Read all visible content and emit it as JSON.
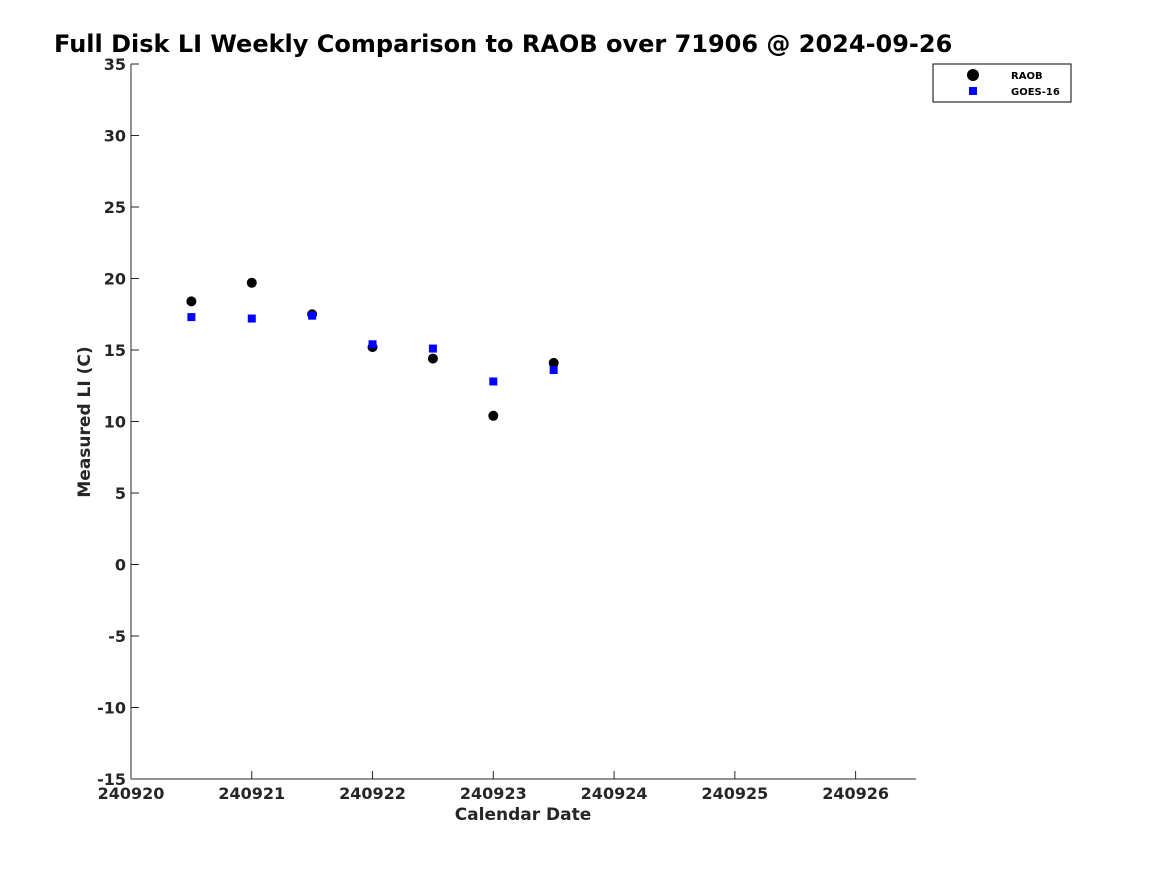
{
  "chart_data": {
    "type": "scatter",
    "title": "Full Disk LI Weekly Comparison to RAOB over 71906 @ 2024-09-26",
    "xlabel": "Calendar Date",
    "ylabel": "Measured LI (C)",
    "xlim": [
      240920,
      240926.5
    ],
    "ylim": [
      -15,
      35
    ],
    "x_ticks": [
      240920,
      240921,
      240922,
      240923,
      240924,
      240925,
      240926
    ],
    "x_tick_labels": [
      "240920",
      "240921",
      "240922",
      "240923",
      "240924",
      "240925",
      "240926"
    ],
    "y_ticks": [
      -15,
      -10,
      -5,
      0,
      5,
      10,
      15,
      20,
      25,
      30,
      35
    ],
    "y_tick_labels": [
      "-15",
      "-10",
      "-5",
      "0",
      "5",
      "10",
      "15",
      "20",
      "25",
      "30",
      "35"
    ],
    "grid": false,
    "legend_position": "top-right",
    "series": [
      {
        "name": "RAOB",
        "marker": "circle",
        "color": "#000000",
        "points": [
          {
            "x": 240920.5,
            "y": 18.4
          },
          {
            "x": 240921.0,
            "y": 19.7
          },
          {
            "x": 240921.5,
            "y": 17.5
          },
          {
            "x": 240922.0,
            "y": 15.2
          },
          {
            "x": 240922.5,
            "y": 14.4
          },
          {
            "x": 240923.0,
            "y": 10.4
          },
          {
            "x": 240923.5,
            "y": 14.1
          }
        ]
      },
      {
        "name": "GOES-16",
        "marker": "square",
        "color": "#0000ff",
        "points": [
          {
            "x": 240920.5,
            "y": 17.3
          },
          {
            "x": 240921.0,
            "y": 17.2
          },
          {
            "x": 240921.5,
            "y": 17.4
          },
          {
            "x": 240922.0,
            "y": 15.4
          },
          {
            "x": 240922.5,
            "y": 15.1
          },
          {
            "x": 240923.0,
            "y": 12.8
          },
          {
            "x": 240923.5,
            "y": 13.6
          }
        ]
      }
    ]
  }
}
